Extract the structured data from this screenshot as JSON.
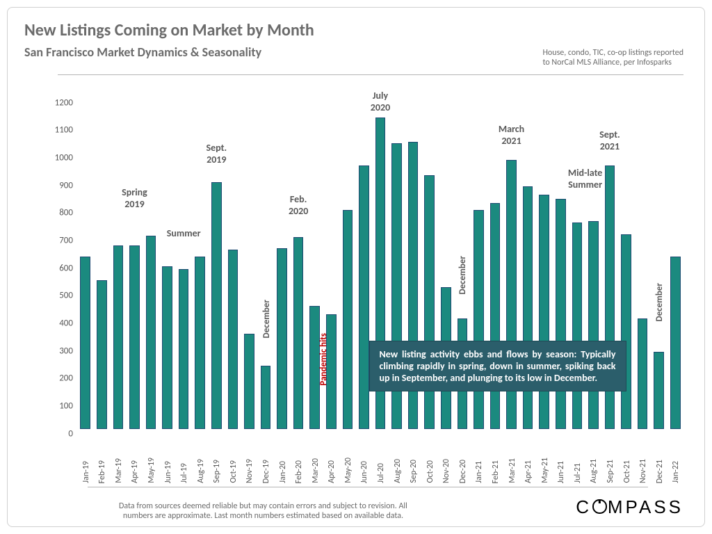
{
  "title": "New Listings Coming on Market by Month",
  "title_fontsize": 24,
  "subtitle": "San Francisco Market Dynamics & Seasonality",
  "subtitle_fontsize": 18,
  "note_right": "House, condo, TIC, co-op listings reported\nto NorCal MLS Alliance, per Infosparks",
  "note_right_fontsize": 12,
  "colors": {
    "title": "#6b6b6b",
    "axis_text": "#595959",
    "bar_fill": "#1b8a7f",
    "bar_border": "#1f4a72",
    "background": "#ffffff",
    "frame_border": "#cfcfcf",
    "hr": "#b5b5b5",
    "pandemic": "#c00000",
    "callout_bg": "#2b5e6b",
    "callout_text": "#ffffff",
    "logo": "#000000"
  },
  "chart": {
    "type": "bar",
    "ylim": [
      0,
      1200
    ],
    "ytick_step": 100,
    "ytick_fontsize": 13,
    "xlabel_fontsize": 12,
    "bar_width_ratio": 0.62,
    "months": [
      "Jan-19",
      "Feb-19",
      "Mar-19",
      "Apr-19",
      "May-19",
      "Jun-19",
      "Jul-19",
      "Aug-19",
      "Sep-19",
      "Oct-19",
      "Nov-19",
      "Dec-19",
      "Jan-20",
      "Feb-20",
      "Mar-20",
      "Apr-20",
      "May-20",
      "Jun-20",
      "Jul-20",
      "Aug-20",
      "Sep-20",
      "Oct-20",
      "Nov-20",
      "Dec-20",
      "Jan-21",
      "Feb-21",
      "Mar-21",
      "Apr-21",
      "May-21",
      "Jun-21",
      "Jul-21",
      "Aug-21",
      "Sep-21",
      "Oct-21",
      "Nov-21",
      "Dec-21",
      "Jan-22"
    ],
    "values": [
      625,
      540,
      665,
      665,
      700,
      590,
      580,
      625,
      895,
      650,
      345,
      230,
      655,
      695,
      445,
      415,
      795,
      955,
      1130,
      1035,
      1040,
      920,
      515,
      400,
      795,
      820,
      975,
      880,
      850,
      835,
      750,
      755,
      955,
      705,
      400,
      280,
      625
    ]
  },
  "annotations": [
    {
      "text": "Spring\n2019",
      "over_idx": 3,
      "y_value": 880,
      "fontsize": 14
    },
    {
      "text": "Summer",
      "over_idx": 6,
      "y_value": 730,
      "fontsize": 14
    },
    {
      "text": "Sept.\n2019",
      "over_idx": 8,
      "y_value": 1040,
      "fontsize": 14
    },
    {
      "text": "December",
      "over_idx": 11,
      "y_value": 480,
      "rotate": -90,
      "fontsize": 13
    },
    {
      "text": "Feb.\n2020",
      "over_idx": 13,
      "y_value": 855,
      "fontsize": 14
    },
    {
      "text": "Pandemic hits",
      "over_idx": 14.5,
      "y_value": 360,
      "pandemic": true,
      "fontsize": 13
    },
    {
      "text": "July\n2020",
      "over_idx": 18,
      "y_value": 1230,
      "fontsize": 14
    },
    {
      "text": "December",
      "over_idx": 23,
      "y_value": 640,
      "rotate": -90,
      "fontsize": 13
    },
    {
      "text": "March\n2021",
      "over_idx": 26,
      "y_value": 1110,
      "fontsize": 14
    },
    {
      "text": "Mid-late\nSummer",
      "over_idx": 30.5,
      "y_value": 950,
      "fontsize": 14
    },
    {
      "text": "Sept.\n2021",
      "over_idx": 32,
      "y_value": 1090,
      "fontsize": 14
    },
    {
      "text": "December",
      "over_idx": 35,
      "y_value": 540,
      "rotate": -90,
      "fontsize": 13
    }
  ],
  "callout": {
    "text": "New listing activity ebbs and flows by season: Typically climbing rapidly in spring, down in summer, spiking back up in September, and plunging to its low in December.",
    "fontsize": 14,
    "left_idx": 17.3,
    "right_idx": 33.0,
    "top_value": 320,
    "bottom_value": 40
  },
  "disclaimer": "Data from sources deemed reliable but may contain errors and subject to revision. All\nnumbers are approximate. Last month numbers estimated based on available data.",
  "disclaimer_fontsize": 12,
  "logo_text": "COMPASS",
  "logo_fontsize": 26
}
